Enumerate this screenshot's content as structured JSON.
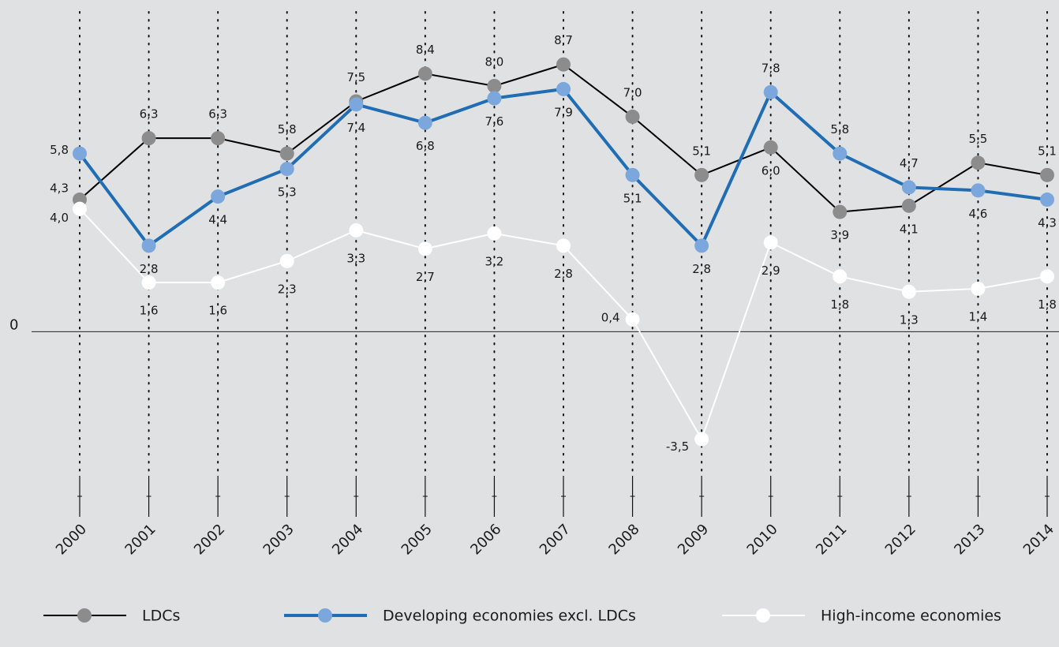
{
  "chart_data": {
    "type": "line",
    "categories": [
      "2000",
      "2001",
      "2002",
      "2003",
      "2004",
      "2005",
      "2006",
      "2007",
      "2008",
      "2009",
      "2010",
      "2011",
      "2012",
      "2013",
      "2014"
    ],
    "series": [
      {
        "name": "LDCs",
        "color": "#000000",
        "marker_color": "#8c8c8c",
        "values": [
          4.3,
          6.3,
          6.3,
          5.8,
          7.5,
          8.4,
          8.0,
          8.7,
          7.0,
          5.1,
          6.0,
          3.9,
          4.1,
          5.5,
          5.1
        ],
        "value_labels": [
          "4,3",
          "6,3",
          "6,3",
          "5,8",
          "7,5",
          "8,4",
          "8,0",
          "8,7",
          "7,0",
          "5,1",
          "6,0",
          "3,9",
          "4,1",
          "5,5",
          "5,1"
        ]
      },
      {
        "name": "Developing economies excl. LDCs",
        "color": "#1f6db5",
        "marker_color": "#7ba7dc",
        "values": [
          5.8,
          2.8,
          4.4,
          5.3,
          7.4,
          6.8,
          7.6,
          7.9,
          5.1,
          2.8,
          7.8,
          5.8,
          4.7,
          4.6,
          4.3
        ],
        "value_labels": [
          "5,8",
          "2,8",
          "4,4",
          "5,3",
          "7,4",
          "6,8",
          "7,6",
          "7,9",
          "5,1",
          "2,8",
          "7,8",
          "5,8",
          "4,7",
          "4,6",
          "4,3"
        ]
      },
      {
        "name": "High-income economies",
        "color": "#ffffff",
        "marker_color": "#ffffff",
        "values": [
          4.0,
          1.6,
          1.6,
          2.3,
          3.3,
          2.7,
          3.2,
          2.8,
          0.4,
          -3.5,
          2.9,
          1.8,
          1.3,
          1.4,
          1.8
        ],
        "value_labels": [
          "4,0",
          "1,6",
          "1,6",
          "2,3",
          "3,3",
          "2,7",
          "3,2",
          "2,8",
          "0,4",
          "-3,5",
          "2,9",
          "1,8",
          "1,3",
          "1,4",
          "1,8"
        ]
      }
    ],
    "ylim": [
      -5,
      10.8
    ],
    "yticks": [
      0
    ],
    "grid": true
  }
}
